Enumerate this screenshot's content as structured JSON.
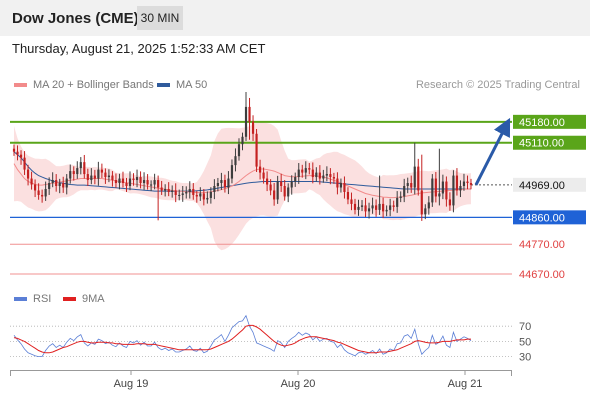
{
  "header": {
    "title": "Dow Jones (CME)",
    "timeframe": "30 MIN"
  },
  "timestamp": "Thursday, August 21, 2025 1:52:33 AM CET",
  "legend": {
    "ma20_label": "MA 20 + Bollinger Bands",
    "ma50_label": "MA 50",
    "ma20_color": "#f28b8b",
    "ma50_color": "#2f5b9c",
    "copyright": "Research © 2025 Trading Central"
  },
  "rsi_legend": {
    "rsi_label": "RSI",
    "ma_label": "9MA",
    "rsi_color": "#5b7fd6",
    "ma_color": "#e02020"
  },
  "colors": {
    "up": "#3d3d3d",
    "down": "#c42020",
    "resistance": "#5aa51a",
    "pivot": "#1f62d6",
    "support": "#e04040",
    "arrow": "#2a5aa8"
  },
  "chart_data": [
    {
      "type": "candlestick",
      "x_labels": [
        "Aug 19",
        "Aug 20",
        "Aug 21"
      ],
      "ylim": [
        44640,
        45280
      ],
      "last_price": 44969,
      "levels": [
        {
          "label": "45180.00",
          "value": 45180,
          "kind": "resistance"
        },
        {
          "label": "45110.00",
          "value": 45110,
          "kind": "resistance"
        },
        {
          "label": "44969.00",
          "value": 44969,
          "kind": "last"
        },
        {
          "label": "44860.00",
          "value": 44860,
          "kind": "pivot"
        },
        {
          "label": "44770.00",
          "value": 44770,
          "kind": "support"
        },
        {
          "label": "44670.00",
          "value": 44670,
          "kind": "support"
        }
      ],
      "forecast_arrow": {
        "from": 44969,
        "to": 45180
      },
      "close": [
        45080,
        45070,
        45060,
        45020,
        44990,
        44970,
        44950,
        44935,
        44930,
        44955,
        44975,
        44985,
        44965,
        44975,
        44960,
        44990,
        45015,
        45005,
        45025,
        45045,
        45005,
        44985,
        45000,
        44990,
        45020,
        45010,
        44995,
        45000,
        44985,
        44975,
        44990,
        44975,
        44965,
        44990,
        44985,
        44995,
        44975,
        44985,
        44970,
        44970,
        44985,
        44960,
        44950,
        44955,
        44945,
        44950,
        44935,
        44935,
        44940,
        44945,
        44955,
        44935,
        44930,
        44940,
        44920,
        44925,
        44945,
        44965,
        44975,
        44985,
        44960,
        44990,
        45035,
        45065,
        45105,
        45130,
        45230,
        45180,
        45140,
        45030,
        45010,
        44990,
        44970,
        44950,
        44920,
        44980,
        44965,
        44930,
        44960,
        44980,
        44995,
        45020,
        45010,
        45025,
        45020,
        44995,
        45010,
        44990,
        45000,
        45005,
        44995,
        44990,
        44960,
        44975,
        44945,
        44920,
        44905,
        44885,
        44895,
        44900,
        44880,
        44890,
        44900,
        44885,
        44905,
        44880,
        44885,
        44900,
        44895,
        44925,
        44930,
        44965,
        44975,
        44960,
        45030,
        44950,
        44870,
        44890,
        44910,
        44990,
        44930,
        44940,
        44980,
        44920,
        44900,
        45000,
        44950,
        44965,
        44980,
        44975,
        44969
      ],
      "ma20": [
        45040,
        45020,
        45005,
        44990,
        44980,
        44975,
        44970,
        44968,
        44968,
        44970,
        44972,
        44974,
        44976,
        44978,
        44980,
        44982,
        44984,
        44986,
        44988,
        44990,
        44990,
        44990,
        44990,
        44990,
        44990,
        44990,
        44988,
        44986,
        44984,
        44982,
        44980,
        44978,
        44976,
        44974,
        44972,
        44970,
        44968,
        44966,
        44964,
        44962,
        44960,
        44958,
        44956,
        44954,
        44952,
        44950,
        44949,
        44948,
        44947,
        44946,
        44945,
        44944,
        44943,
        44943,
        44943,
        44944,
        44946,
        44948,
        44950,
        44953,
        44956,
        44960,
        44965,
        44972,
        44980,
        44990,
        45000,
        45008,
        45015,
        45020,
        45022,
        45022,
        45020,
        45018,
        45015,
        45010,
        45005,
        45000,
        44998,
        44996,
        44996,
        44997,
        44998,
        44999,
        45000,
        45000,
        44999,
        44997,
        44995,
        44992,
        44988,
        44984,
        44980,
        44975,
        44970,
        44965,
        44960,
        44955,
        44950,
        44945,
        44940,
        44937,
        44934,
        44932,
        44930,
        44928,
        44927,
        44926,
        44926,
        44927,
        44928,
        44930,
        44932,
        44934,
        44937,
        44940,
        44942,
        44943,
        44944,
        44945,
        44946,
        44947,
        44948,
        44949,
        44950,
        44951,
        44952,
        44953,
        44954,
        44955,
        44956
      ],
      "ma50": [
        45080,
        45070,
        45060,
        45045,
        45030,
        45018,
        45008,
        45000,
        44995,
        44990,
        44986,
        44982,
        44979,
        44976,
        44974,
        44972,
        44970,
        44969,
        44968,
        44968,
        44968,
        44967,
        44966,
        44965,
        44964,
        44963,
        44962,
        44961,
        44960,
        44959,
        44958,
        44957,
        44956,
        44955,
        44954,
        44953,
        44952,
        44951,
        44950,
        44949,
        44948,
        44948,
        44948,
        44948,
        44948,
        44948,
        44948,
        44948,
        44948,
        44948,
        44948,
        44948,
        44949,
        44950,
        44951,
        44952,
        44954,
        44956,
        44958,
        44960,
        44962,
        44964,
        44966,
        44968,
        44970,
        44972,
        44974,
        44976,
        44977,
        44978,
        44979,
        44980,
        44980,
        44980,
        44980,
        44980,
        44980,
        44980,
        44980,
        44980,
        44980,
        44980,
        44980,
        44980,
        44980,
        44980,
        44980,
        44979,
        44978,
        44977,
        44976,
        44975,
        44974,
        44973,
        44972,
        44971,
        44970,
        44969,
        44968,
        44967,
        44966,
        44965,
        44964,
        44963,
        44962,
        44961,
        44960,
        44959,
        44958,
        44957,
        44956,
        44955,
        44955,
        44955,
        44955,
        44955,
        44955,
        44955,
        44955,
        44955,
        44955,
        44955,
        44955,
        44955,
        44955,
        44955,
        44955,
        44955,
        44955,
        44955,
        44955
      ]
    },
    {
      "type": "line",
      "name": "RSI",
      "ylim": [
        15,
        90
      ],
      "ticks": [
        "70",
        "50",
        "30"
      ],
      "tick_values": [
        70,
        50,
        30
      ],
      "rsi": [
        58,
        52,
        47,
        40,
        35,
        33,
        31,
        30,
        30,
        38,
        44,
        47,
        42,
        45,
        42,
        49,
        54,
        51,
        56,
        59,
        48,
        44,
        48,
        46,
        53,
        51,
        47,
        49,
        45,
        43,
        48,
        44,
        42,
        50,
        48,
        51,
        45,
        49,
        44,
        44,
        49,
        42,
        39,
        41,
        38,
        40,
        36,
        36,
        38,
        40,
        44,
        38,
        37,
        41,
        35,
        37,
        44,
        52,
        55,
        59,
        50,
        58,
        68,
        72,
        76,
        77,
        84,
        70,
        62,
        48,
        46,
        44,
        42,
        40,
        37,
        51,
        48,
        42,
        50,
        54,
        57,
        62,
        58,
        61,
        59,
        52,
        56,
        50,
        53,
        54,
        50,
        49,
        42,
        46,
        39,
        35,
        33,
        31,
        35,
        36,
        33,
        35,
        38,
        34,
        40,
        33,
        35,
        40,
        38,
        47,
        48,
        57,
        59,
        54,
        66,
        47,
        33,
        38,
        42,
        58,
        46,
        49,
        57,
        45,
        42,
        62,
        50,
        53,
        56,
        54,
        51
      ],
      "rsi_ma": [
        55,
        54,
        52,
        50,
        47,
        44,
        41,
        38,
        36,
        35,
        35,
        36,
        38,
        40,
        42,
        43,
        45,
        47,
        49,
        50,
        50,
        49,
        48,
        48,
        49,
        49,
        49,
        48,
        48,
        47,
        47,
        46,
        46,
        46,
        46,
        47,
        47,
        47,
        46,
        46,
        46,
        45,
        44,
        43,
        42,
        41,
        40,
        39,
        39,
        39,
        39,
        39,
        39,
        39,
        39,
        39,
        40,
        42,
        44,
        46,
        48,
        50,
        53,
        57,
        61,
        65,
        70,
        71,
        71,
        69,
        66,
        62,
        58,
        54,
        50,
        47,
        45,
        44,
        45,
        46,
        48,
        51,
        53,
        55,
        56,
        56,
        56,
        55,
        54,
        53,
        52,
        51,
        49,
        48,
        46,
        44,
        42,
        40,
        38,
        37,
        36,
        35,
        35,
        35,
        36,
        36,
        36,
        37,
        38,
        39,
        41,
        43,
        45,
        47,
        50,
        51,
        50,
        49,
        48,
        48,
        48,
        49,
        50,
        50,
        50,
        51,
        52,
        52,
        52,
        53,
        53
      ]
    }
  ]
}
